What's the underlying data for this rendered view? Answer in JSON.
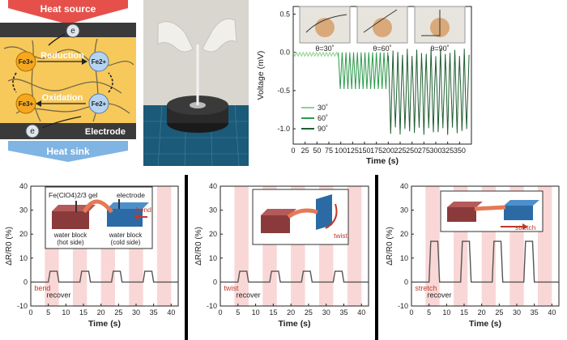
{
  "panel_a": {
    "heat_source": "Heat source",
    "heat_sink": "Heat sink",
    "electrode": "Electrode",
    "reduction": "Reduction",
    "oxidation": "Oxidation",
    "electron": "e",
    "fe3_a": "Fe3+",
    "fe2_a": "Fe2+",
    "fe3_b": "Fe3+",
    "fe2_b": "Fe2+",
    "colors": {
      "heat": "#e6504a",
      "sink": "#7fb4e3",
      "gel": "#f7c95a",
      "fe3": "#f5a81e",
      "fe2": "#b5d4f2"
    }
  },
  "panel_b": {
    "description_icon": "gloved-hands-stretching-gel-fiber-photo"
  },
  "chart_voltage": {
    "xlabel": "Time (s)",
    "ylabel": "Voltage (mV)",
    "insets": [
      "θ=30˚",
      "θ=60˚",
      "θ=90˚"
    ],
    "legend": [
      "30˚",
      "60˚",
      "90˚"
    ]
  },
  "chart_data": [
    {
      "type": "line",
      "xlabel": "Time (s)",
      "ylabel": "Voltage (mV)",
      "xlim": [
        0,
        375
      ],
      "ylim": [
        -1.2,
        0.6
      ],
      "xticks": [
        0,
        25,
        50,
        75,
        100,
        125,
        150,
        175,
        200,
        225,
        250,
        275,
        300,
        325,
        350
      ],
      "yticks": [
        -1.0,
        -0.5,
        0.0,
        0.5
      ],
      "legend_position": "bottom-left",
      "series": [
        {
          "name": "30˚",
          "color": "#8fd18f",
          "x_range": [
            0,
            95
          ],
          "baseline": 0.0,
          "low": -0.05,
          "period_s": 7
        },
        {
          "name": "60˚",
          "color": "#2c9a4a",
          "x_range": [
            95,
            200
          ],
          "baseline": 0.0,
          "low": -0.48,
          "period_s": 8
        },
        {
          "name": "90˚",
          "color": "#1f5e30",
          "x_range": [
            200,
            370
          ],
          "baseline": 0.0,
          "low": -1.03,
          "period_s": 10
        }
      ]
    },
    {
      "type": "line",
      "xlabel": "Time (s)",
      "ylabel": "ΔR/R0 (%)",
      "xlim": [
        0,
        42
      ],
      "ylim": [
        -10,
        40
      ],
      "xticks": [
        0,
        5,
        10,
        15,
        20,
        25,
        30,
        35,
        40
      ],
      "yticks": [
        -10,
        0,
        10,
        20,
        30,
        40
      ],
      "shaded_intervals": [
        [
          4,
          8
        ],
        [
          12,
          16
        ],
        [
          20,
          24
        ],
        [
          28,
          32
        ],
        [
          36,
          40
        ]
      ],
      "pulse_intervals": [
        [
          5,
          8
        ],
        [
          14,
          17
        ],
        [
          23,
          26
        ],
        [
          32,
          35
        ]
      ],
      "baseline": 0,
      "peak": 4.5,
      "annotations": [
        "bend",
        "recover"
      ],
      "inset_labels": [
        "Fe(ClO4)2/3 gel",
        "electrode",
        "bend",
        "water block",
        "(hot side)",
        "water block",
        "(cold side)"
      ]
    },
    {
      "type": "line",
      "xlabel": "Time (s)",
      "ylabel": "ΔR/R0 (%)",
      "xlim": [
        0,
        42
      ],
      "ylim": [
        -10,
        40
      ],
      "xticks": [
        0,
        5,
        10,
        15,
        20,
        25,
        30,
        35,
        40
      ],
      "yticks": [
        -10,
        0,
        10,
        20,
        30,
        40
      ],
      "shaded_intervals": [
        [
          4,
          8
        ],
        [
          12,
          16
        ],
        [
          20,
          24
        ],
        [
          28,
          32
        ],
        [
          36,
          40
        ]
      ],
      "pulse_intervals": [
        [
          5,
          8
        ],
        [
          14,
          17
        ],
        [
          23,
          26
        ],
        [
          32,
          35
        ]
      ],
      "baseline": 0,
      "peak": 4.5,
      "annotations": [
        "twist",
        "recover"
      ],
      "inset_labels": [
        "twist"
      ]
    },
    {
      "type": "line",
      "xlabel": "Time (s)",
      "ylabel": "ΔR/R0 (%)",
      "xlim": [
        0,
        42
      ],
      "ylim": [
        -10,
        40
      ],
      "xticks": [
        0,
        5,
        10,
        15,
        20,
        25,
        30,
        35,
        40
      ],
      "yticks": [
        -10,
        0,
        10,
        20,
        30,
        40
      ],
      "shaded_intervals": [
        [
          4,
          8
        ],
        [
          12,
          16
        ],
        [
          20,
          24
        ],
        [
          28,
          32
        ],
        [
          36,
          40
        ]
      ],
      "pulse_intervals": [
        [
          5,
          8
        ],
        [
          14,
          17
        ],
        [
          23,
          26
        ],
        [
          32,
          35
        ]
      ],
      "baseline": 0,
      "peak": 17,
      "annotations": [
        "stretch",
        "recover"
      ],
      "inset_labels": [
        "stretch"
      ]
    }
  ]
}
